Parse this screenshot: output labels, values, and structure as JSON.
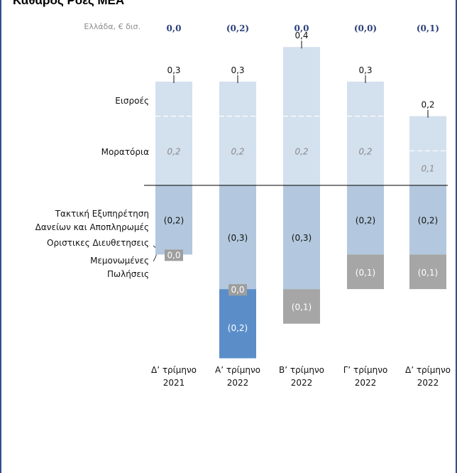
{
  "title": "Καθαρός Ροές ΜΕΑ",
  "unit_label": "Ελλάδα, € δισ.",
  "row_labels": {
    "inflows": "Εισροές",
    "moratoria": "Μορατόρια",
    "repayments_line1": "Τακτική Εξυπηρέτηση",
    "repayments_line2": "Δανείων  και Αποπληρωμές",
    "writeoffs": "Οριστικες Διευθετησεις",
    "sales_line1": "Μεμονωμένες",
    "sales_line2": "Πωλήσεις"
  },
  "chart_data": {
    "type": "bar",
    "stacked": true,
    "categories": [
      [
        "Δ’ τρίμηνο",
        "2021"
      ],
      [
        "Α’ τρίμηνο",
        "2022"
      ],
      [
        "Β’ τρίμηνο",
        "2022"
      ],
      [
        "Γ’ τρίμηνο",
        "2022"
      ],
      [
        "Δ’ τρίμηνο",
        "2022"
      ]
    ],
    "net_flows": [
      "0,0",
      "(0,2)",
      "0,0",
      "(0,0)",
      "(0,1)"
    ],
    "inflow_totals": [
      0.3,
      0.3,
      0.4,
      0.3,
      0.2
    ],
    "inflow_total_labels": [
      "0,3",
      "0,3",
      "0,4",
      "0,3",
      "0,2"
    ],
    "series": [
      {
        "name": "Εισροές",
        "values": [
          0.1,
          0.1,
          0.2,
          0.1,
          0.1
        ],
        "color": "#d3e0ee"
      },
      {
        "name": "Μορατόρια",
        "values": [
          0.2,
          0.2,
          0.2,
          0.2,
          0.1
        ],
        "labels": [
          "0,2",
          "0,2",
          "0,2",
          "0,2",
          "0,1"
        ],
        "color": "#d3e0ee"
      },
      {
        "name": "Τακτική Εξυπηρέτηση Δανείων και Αποπληρωμές",
        "values": [
          -0.2,
          -0.3,
          -0.3,
          -0.2,
          -0.2
        ],
        "labels": [
          "(0,2)",
          "(0,3)",
          "(0,3)",
          "(0,2)",
          "(0,2)"
        ],
        "color": "#b3c8de"
      },
      {
        "name": "Οριστικες Διευθετησεις",
        "values": [
          0.0,
          0.0,
          0.0,
          0.0,
          0.0
        ],
        "labels": [
          "0,0",
          "0,0",
          null,
          null,
          null
        ],
        "color": "#9e9e9e"
      },
      {
        "name": "Μεμονωμένες Πωλήσεις",
        "values": [
          0.0,
          -0.2,
          -0.1,
          -0.1,
          -0.1
        ],
        "labels": [
          null,
          "(0,2)",
          "(0,1)",
          "(0,1)",
          "(0,1)"
        ],
        "colors": [
          "#a6a6a6",
          "#5b8ec9",
          "#a6a6a6",
          "#a6a6a6",
          "#a6a6a6"
        ]
      }
    ],
    "ylim": [
      -0.5,
      0.45
    ],
    "grid": false,
    "legend": "left"
  }
}
